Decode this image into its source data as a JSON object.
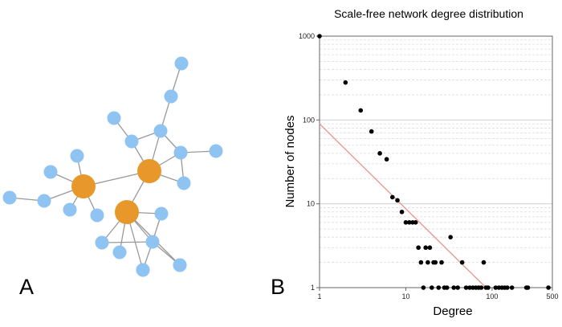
{
  "figure": {
    "panel_a_label": "A",
    "panel_b_label": "B"
  },
  "network": {
    "hub_color": "#E8982A",
    "leaf_color": "#8EC3F2",
    "edge_color": "#999999",
    "nodes": [
      {
        "id": "h1",
        "kind": "hub"
      },
      {
        "id": "h2",
        "kind": "hub"
      },
      {
        "id": "h3",
        "kind": "hub"
      },
      {
        "id": "n1",
        "kind": "leaf"
      },
      {
        "id": "n2",
        "kind": "leaf"
      },
      {
        "id": "n3",
        "kind": "leaf"
      },
      {
        "id": "n4",
        "kind": "leaf"
      },
      {
        "id": "n5",
        "kind": "leaf"
      },
      {
        "id": "n6",
        "kind": "leaf"
      },
      {
        "id": "n7",
        "kind": "leaf"
      },
      {
        "id": "n8",
        "kind": "leaf"
      },
      {
        "id": "n9",
        "kind": "leaf"
      },
      {
        "id": "n10",
        "kind": "leaf"
      },
      {
        "id": "n11",
        "kind": "leaf"
      },
      {
        "id": "n12",
        "kind": "leaf"
      },
      {
        "id": "n13",
        "kind": "leaf"
      },
      {
        "id": "n14",
        "kind": "leaf"
      },
      {
        "id": "n15",
        "kind": "leaf"
      },
      {
        "id": "n16",
        "kind": "leaf"
      },
      {
        "id": "n17",
        "kind": "leaf"
      },
      {
        "id": "n18",
        "kind": "leaf"
      },
      {
        "id": "n19",
        "kind": "leaf"
      },
      {
        "id": "n20",
        "kind": "leaf"
      },
      {
        "id": "n21",
        "kind": "leaf"
      },
      {
        "id": "n22",
        "kind": "leaf"
      }
    ],
    "edges": [
      [
        "h1",
        "n1"
      ],
      [
        "h1",
        "n2"
      ],
      [
        "h1",
        "n3"
      ],
      [
        "h1",
        "n4"
      ],
      [
        "h1",
        "n5"
      ],
      [
        "h1",
        "h2"
      ],
      [
        "n2",
        "n22"
      ],
      [
        "h2",
        "n6"
      ],
      [
        "h2",
        "n7"
      ],
      [
        "h2",
        "n8"
      ],
      [
        "h2",
        "n9"
      ],
      [
        "h2",
        "h3"
      ],
      [
        "n7",
        "n10"
      ],
      [
        "n10",
        "n11"
      ],
      [
        "n7",
        "n6"
      ],
      [
        "n6",
        "n12"
      ],
      [
        "n7",
        "n8"
      ],
      [
        "n8",
        "n13"
      ],
      [
        "n8",
        "n9"
      ],
      [
        "h3",
        "n14"
      ],
      [
        "h3",
        "n15"
      ],
      [
        "h3",
        "n16"
      ],
      [
        "h3",
        "n17"
      ],
      [
        "h3",
        "n18"
      ],
      [
        "h3",
        "n19"
      ],
      [
        "n15",
        "n20"
      ],
      [
        "n15",
        "n21"
      ],
      [
        "n15",
        "n14"
      ],
      [
        "n15",
        "n17"
      ]
    ]
  },
  "chart_data": {
    "type": "scatter",
    "title": "Scale-free network degree distribution",
    "xlabel": "Degree",
    "ylabel": "Number of nodes",
    "x_scale": "log",
    "y_scale": "log",
    "xlim": [
      1,
      500
    ],
    "ylim": [
      1,
      1000
    ],
    "x_ticks": [
      "1",
      "10",
      "100",
      "500"
    ],
    "y_ticks": [
      "1",
      "10",
      "100",
      "1000"
    ],
    "grid": "horizontal",
    "point_color": "#000000",
    "fit_line_color": "#E8968E",
    "fit_line": {
      "x": [
        1,
        85
      ],
      "y": [
        90,
        1
      ]
    },
    "series": [
      {
        "x": [
          1,
          2,
          3,
          4,
          5,
          6,
          7,
          8,
          9,
          10,
          11,
          12,
          13,
          14,
          15,
          16,
          17,
          18,
          19,
          20,
          21,
          22,
          24,
          26,
          28,
          30,
          33,
          36,
          40,
          45,
          50,
          55,
          60,
          65,
          70,
          75,
          80,
          85,
          90,
          110,
          120,
          130,
          140,
          150,
          170,
          250,
          260,
          450
        ],
        "y": [
          1000,
          280,
          130,
          73,
          40,
          34,
          12,
          11,
          8,
          6,
          6,
          6,
          6,
          3,
          2,
          1,
          3,
          2,
          3,
          1,
          2,
          2,
          1,
          2,
          1,
          1,
          4,
          1,
          1,
          2,
          1,
          1,
          1,
          1,
          1,
          1,
          2,
          1,
          1,
          1,
          1,
          1,
          1,
          1,
          1,
          1,
          1,
          1
        ]
      }
    ]
  }
}
